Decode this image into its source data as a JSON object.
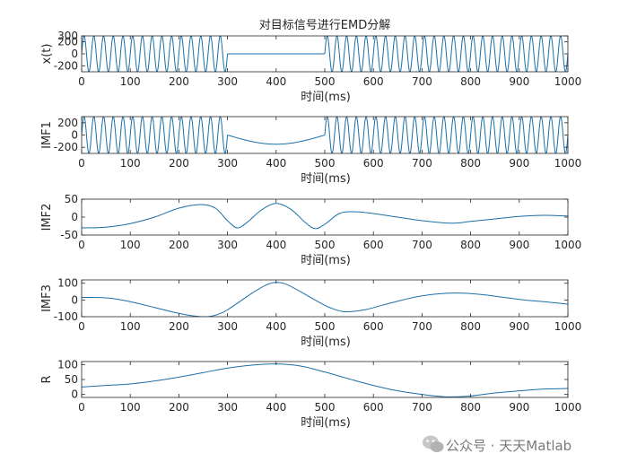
{
  "figure_title": "对目标信号进行EMD分解",
  "watermark": {
    "icon": "wechat-icon",
    "text": "公众号 · 天天Matlab"
  },
  "colors": {
    "line": "#1a6fa8",
    "axis": "#262626"
  },
  "chart_data": [
    {
      "type": "line",
      "title": "对目标信号进行EMD分解",
      "ylabel": "x(t)",
      "xlabel": "时间(ms)",
      "xlim": [
        0,
        1000
      ],
      "ylim": [
        -300,
        300
      ],
      "xticks": [
        "0",
        "100",
        "200",
        "300",
        "400",
        "500",
        "600",
        "700",
        "800",
        "900",
        "1000"
      ],
      "yticks": [
        "300",
        "200",
        "0",
        "-200"
      ],
      "yticks_values": [
        300,
        200,
        0,
        -200
      ],
      "signal": {
        "components": [
          {
            "shape": "sine",
            "amplitude": 300,
            "period_ms": 20,
            "x_range": [
              0,
              300
            ]
          },
          {
            "shape": "sine",
            "amplitude": 300,
            "period_ms": 20,
            "x_range": [
              500,
              1000
            ]
          },
          {
            "shape": "constant",
            "value": 0,
            "x_range": [
              300,
              500
            ]
          }
        ]
      }
    },
    {
      "type": "line",
      "ylabel": "IMF1",
      "xlabel": "时间(ms)",
      "xlim": [
        0,
        1000
      ],
      "ylim": [
        -300,
        300
      ],
      "xticks": [
        "0",
        "100",
        "200",
        "300",
        "400",
        "500",
        "600",
        "700",
        "800",
        "900",
        "1000"
      ],
      "yticks": [
        "200",
        "0",
        "-200"
      ],
      "yticks_values": [
        200,
        0,
        -200
      ],
      "signal": {
        "components": [
          {
            "shape": "sine",
            "amplitude": 300,
            "period_ms": 20,
            "x_range": [
              0,
              300
            ]
          },
          {
            "shape": "sine",
            "amplitude": 300,
            "period_ms": 20,
            "x_range": [
              500,
              1000
            ]
          },
          {
            "shape": "dip",
            "depth": -150,
            "x_range": [
              300,
              500
            ]
          }
        ]
      }
    },
    {
      "type": "line",
      "ylabel": "IMF2",
      "xlabel": "时间(ms)",
      "xlim": [
        0,
        1000
      ],
      "ylim": [
        -50,
        50
      ],
      "xticks": [
        "0",
        "100",
        "200",
        "300",
        "400",
        "500",
        "600",
        "700",
        "800",
        "900",
        "1000"
      ],
      "yticks": [
        "50",
        "0",
        "-50"
      ],
      "yticks_values": [
        50,
        0,
        -50
      ],
      "points": [
        [
          0,
          -30
        ],
        [
          50,
          -28
        ],
        [
          100,
          -18
        ],
        [
          150,
          0
        ],
        [
          200,
          25
        ],
        [
          245,
          35
        ],
        [
          275,
          25
        ],
        [
          300,
          -10
        ],
        [
          320,
          -30
        ],
        [
          340,
          -15
        ],
        [
          370,
          20
        ],
        [
          400,
          38
        ],
        [
          430,
          22
        ],
        [
          460,
          -15
        ],
        [
          480,
          -32
        ],
        [
          500,
          -20
        ],
        [
          530,
          10
        ],
        [
          560,
          15
        ],
        [
          600,
          10
        ],
        [
          650,
          0
        ],
        [
          700,
          -10
        ],
        [
          760,
          -17
        ],
        [
          800,
          -12
        ],
        [
          850,
          -5
        ],
        [
          900,
          2
        ],
        [
          950,
          5
        ],
        [
          1000,
          3
        ]
      ]
    },
    {
      "type": "line",
      "ylabel": "IMF3",
      "xlabel": "时间(ms)",
      "xlim": [
        0,
        1000
      ],
      "ylim": [
        -100,
        120
      ],
      "xticks": [
        "0",
        "100",
        "200",
        "300",
        "400",
        "500",
        "600",
        "700",
        "800",
        "900",
        "1000"
      ],
      "yticks": [
        "100",
        "0",
        "-100"
      ],
      "yticks_values": [
        100,
        0,
        -100
      ],
      "points": [
        [
          0,
          15
        ],
        [
          30,
          15
        ],
        [
          60,
          10
        ],
        [
          100,
          -10
        ],
        [
          150,
          -45
        ],
        [
          200,
          -80
        ],
        [
          230,
          -95
        ],
        [
          260,
          -100
        ],
        [
          290,
          -75
        ],
        [
          320,
          -20
        ],
        [
          350,
          40
        ],
        [
          380,
          90
        ],
        [
          400,
          105
        ],
        [
          420,
          95
        ],
        [
          450,
          50
        ],
        [
          480,
          0
        ],
        [
          510,
          -45
        ],
        [
          540,
          -70
        ],
        [
          580,
          -60
        ],
        [
          620,
          -30
        ],
        [
          660,
          0
        ],
        [
          700,
          25
        ],
        [
          750,
          40
        ],
        [
          790,
          40
        ],
        [
          830,
          30
        ],
        [
          870,
          15
        ],
        [
          910,
          0
        ],
        [
          950,
          -10
        ],
        [
          1000,
          -25
        ]
      ]
    },
    {
      "type": "line",
      "ylabel": "R",
      "xlabel": "时间(ms)",
      "xlim": [
        0,
        1000
      ],
      "ylim": [
        -10,
        110
      ],
      "xticks": [
        "0",
        "100",
        "200",
        "300",
        "400",
        "500",
        "600",
        "700",
        "800",
        "900",
        "1000"
      ],
      "yticks": [
        "100",
        "50",
        "0"
      ],
      "yticks_values": [
        100,
        50,
        0
      ],
      "points": [
        [
          0,
          25
        ],
        [
          50,
          30
        ],
        [
          100,
          35
        ],
        [
          150,
          45
        ],
        [
          200,
          58
        ],
        [
          250,
          73
        ],
        [
          300,
          88
        ],
        [
          350,
          98
        ],
        [
          400,
          102
        ],
        [
          450,
          95
        ],
        [
          500,
          75
        ],
        [
          550,
          52
        ],
        [
          600,
          30
        ],
        [
          650,
          12
        ],
        [
          700,
          0
        ],
        [
          750,
          -8
        ],
        [
          800,
          -5
        ],
        [
          850,
          5
        ],
        [
          900,
          12
        ],
        [
          950,
          18
        ],
        [
          1000,
          20
        ]
      ]
    }
  ]
}
